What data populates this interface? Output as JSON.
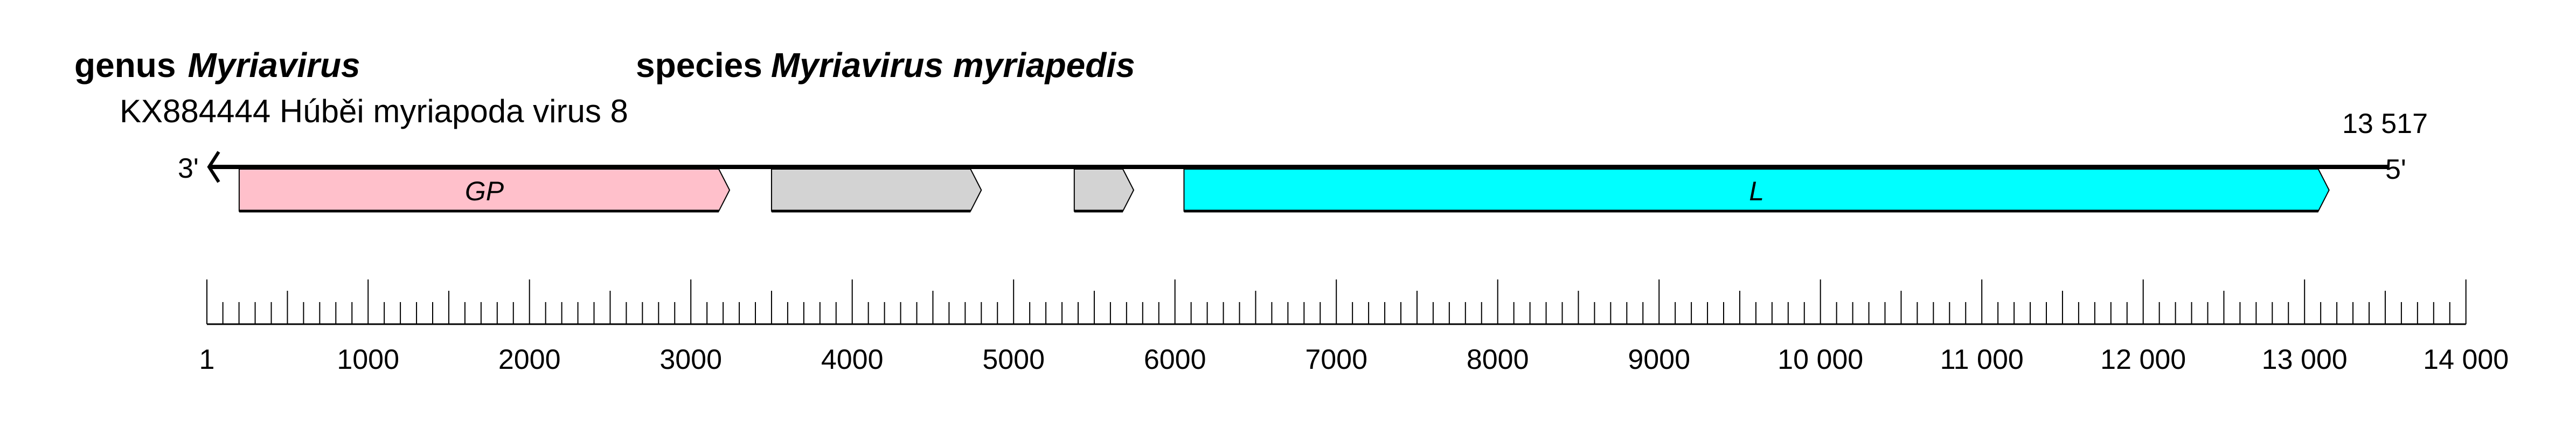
{
  "header": {
    "genus_prefix": "genus",
    "genus_name": "Myriavirus",
    "species_prefix": "species",
    "species_name": "Myriavirus myriapedis",
    "accession_line": "KX884444 Húběi myriapoda virus 8"
  },
  "genome": {
    "length": 13517,
    "length_label": "13 517",
    "left_end_label": "3'",
    "right_end_label": "5'",
    "genes": [
      {
        "label": "GP",
        "start": 201,
        "end": 3240,
        "color": "#ffc0cb"
      },
      {
        "label": "",
        "start": 3500,
        "end": 4800,
        "color": "#d3d3d3"
      },
      {
        "label": "",
        "start": 5376,
        "end": 5744,
        "color": "#d3d3d3"
      },
      {
        "label": "L",
        "start": 6056,
        "end": 13152,
        "color": "#00ffff"
      }
    ]
  },
  "ruler": {
    "min": 1,
    "max": 14000,
    "minor_step": 100,
    "mid_step": 500,
    "major_step": 1000,
    "tick_labels": [
      "1",
      "1000",
      "2000",
      "3000",
      "4000",
      "5000",
      "6000",
      "7000",
      "8000",
      "9000",
      "10 000",
      "11 000",
      "12 000",
      "13 000",
      "14 000"
    ]
  }
}
